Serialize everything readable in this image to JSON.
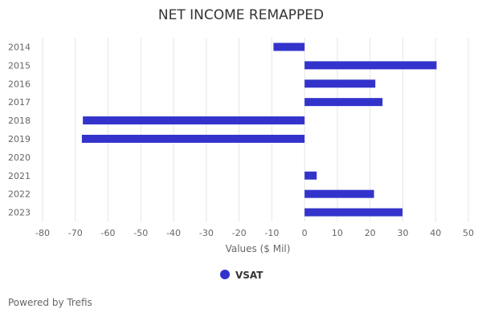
{
  "chart_data": {
    "type": "bar",
    "orientation": "horizontal",
    "title": "NET INCOME REMAPPED",
    "xlabel": "Values ($ Mil)",
    "ylabel": "",
    "categories": [
      "2014",
      "2015",
      "2016",
      "2017",
      "2018",
      "2019",
      "2020",
      "2021",
      "2022",
      "2023"
    ],
    "series": [
      {
        "name": "VSAT",
        "values": [
          -9.5,
          40.3,
          21.6,
          23.8,
          -67.7,
          -68.0,
          0,
          3.7,
          21.2,
          29.9
        ]
      }
    ],
    "xlim": [
      -80,
      50
    ],
    "xticks": [
      -80,
      -70,
      -60,
      -50,
      -40,
      -30,
      -20,
      -10,
      0,
      10,
      20,
      30,
      40,
      50
    ],
    "grid": true,
    "legend_position": "bottom-center",
    "bar_color": "#3333cc",
    "grid_color": "#e6e6e6"
  },
  "credit": "Powered by Trefis"
}
